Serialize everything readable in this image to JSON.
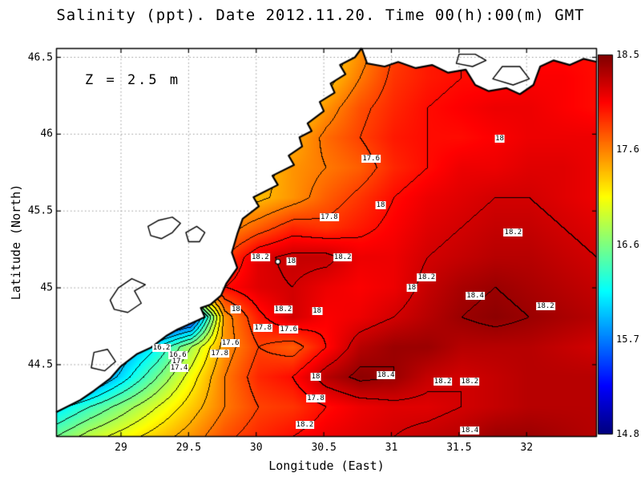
{
  "title": "Salinity (ppt). Date 2012.11.20. Time 00(h):00(m) GMT",
  "annotation": "Z = 2.5 m",
  "axes": {
    "x": {
      "label": "Longitude (East)",
      "min": 28.52,
      "max": 32.52,
      "ticks": [
        29,
        29.5,
        30,
        30.5,
        31,
        31.5,
        32
      ]
    },
    "y": {
      "label": "Latitude (North)",
      "min": 44.03,
      "max": 46.56,
      "ticks": [
        44.5,
        45,
        45.5,
        46,
        46.5
      ]
    }
  },
  "colorbar": {
    "min": 14.8,
    "max": 18.5,
    "tick_labels": [
      "18.5",
      "17.6",
      "16.6",
      "15.7",
      "14.8"
    ]
  },
  "colors": {
    "land": "#ffffff",
    "coast": "#000000",
    "grid": "#999999",
    "frame": "#000000",
    "contour": "#000000",
    "label_bg": "#ffffff"
  },
  "chart_data": {
    "type": "heatmap",
    "variable": "salinity_ppt",
    "colormap": "jet",
    "contour_interval": 0.2,
    "value_range": [
      14.8,
      18.5
    ],
    "lon": [
      28.52,
      28.77,
      29.02,
      29.27,
      29.52,
      29.77,
      30.02,
      30.27,
      30.52,
      30.77,
      31.02,
      31.27,
      31.52,
      31.77,
      32.02,
      32.27,
      32.52
    ],
    "lat": [
      46.56,
      46.365,
      46.171,
      45.976,
      45.782,
      45.587,
      45.392,
      45.198,
      45.003,
      44.809,
      44.614,
      44.419,
      44.225,
      44.03
    ],
    "values": [
      [
        17.0,
        17.0,
        17.0,
        17.0,
        17.0,
        17.0,
        17.0,
        17.0,
        17.2,
        17.5,
        17.8,
        17.95,
        18.0,
        18.0,
        18.0,
        18.0,
        18.0
      ],
      [
        17.0,
        17.0,
        17.0,
        17.0,
        17.0,
        17.0,
        17.0,
        17.1,
        17.3,
        17.6,
        17.85,
        17.95,
        18.0,
        18.0,
        18.05,
        18.05,
        18.0
      ],
      [
        17.0,
        17.0,
        17.0,
        17.0,
        17.0,
        17.0,
        17.1,
        17.2,
        17.5,
        17.75,
        17.9,
        18.0,
        18.05,
        18.1,
        18.1,
        18.05,
        18.0
      ],
      [
        17.0,
        17.0,
        17.0,
        17.0,
        17.0,
        17.1,
        17.2,
        17.4,
        17.65,
        17.8,
        17.95,
        18.0,
        18.0,
        18.05,
        18.1,
        18.1,
        18.1
      ],
      [
        17.2,
        17.2,
        17.2,
        17.2,
        17.2,
        17.2,
        17.3,
        17.5,
        17.6,
        17.7,
        17.9,
        18.0,
        18.1,
        18.1,
        18.15,
        18.15,
        18.1
      ],
      [
        17.4,
        17.4,
        17.4,
        17.4,
        17.4,
        17.3,
        17.35,
        17.5,
        17.7,
        17.85,
        18.0,
        18.1,
        18.15,
        18.2,
        18.2,
        18.15,
        18.1
      ],
      [
        17.6,
        17.6,
        17.6,
        17.6,
        17.6,
        17.5,
        17.7,
        17.9,
        17.85,
        17.95,
        18.05,
        18.15,
        18.2,
        18.25,
        18.25,
        18.2,
        18.15
      ],
      [
        17.8,
        17.8,
        17.8,
        17.8,
        17.8,
        17.8,
        18.15,
        18.25,
        18.25,
        18.1,
        18.1,
        18.2,
        18.25,
        18.3,
        18.3,
        18.25,
        18.2
      ],
      [
        17.9,
        17.9,
        17.9,
        17.9,
        17.9,
        18.0,
        18.15,
        18.2,
        18.1,
        18.05,
        18.1,
        18.25,
        18.35,
        18.4,
        18.35,
        18.3,
        18.25
      ],
      [
        16.0,
        15.5,
        15.2,
        15.0,
        15.3,
        17.5,
        17.95,
        18.2,
        18.05,
        18.1,
        18.2,
        18.3,
        18.4,
        18.45,
        18.4,
        18.35,
        18.3
      ],
      [
        14.9,
        15.1,
        15.8,
        16.2,
        16.8,
        17.5,
        17.8,
        17.7,
        18.0,
        18.3,
        18.4,
        18.4,
        18.3,
        18.3,
        18.3,
        18.25,
        18.2
      ],
      [
        15.2,
        15.6,
        16.1,
        16.6,
        17.1,
        17.6,
        17.9,
        18.0,
        18.3,
        18.45,
        18.4,
        18.25,
        18.2,
        18.25,
        18.3,
        18.3,
        18.3
      ],
      [
        16.1,
        16.4,
        16.7,
        17.0,
        17.3,
        17.6,
        17.8,
        17.85,
        18.0,
        18.1,
        18.15,
        18.15,
        18.2,
        18.25,
        18.3,
        18.3,
        18.3
      ],
      [
        16.6,
        16.9,
        17.1,
        17.3,
        17.5,
        17.75,
        17.9,
        18.0,
        18.1,
        18.15,
        18.2,
        18.25,
        18.3,
        18.4,
        18.4,
        18.35,
        18.3
      ]
    ],
    "contour_labels": [
      {
        "t": "18",
        "lon": 31.8,
        "lat": 45.97
      },
      {
        "t": "17.6",
        "lon": 30.85,
        "lat": 45.84
      },
      {
        "t": "18",
        "lon": 30.92,
        "lat": 45.54
      },
      {
        "t": "17.8",
        "lon": 30.54,
        "lat": 45.46
      },
      {
        "t": "18.2",
        "lon": 31.9,
        "lat": 45.36
      },
      {
        "t": "18.2",
        "lon": 30.03,
        "lat": 45.2
      },
      {
        "t": "18",
        "lon": 30.26,
        "lat": 45.17
      },
      {
        "t": "18.2",
        "lon": 30.64,
        "lat": 45.2
      },
      {
        "t": "18.2",
        "lon": 31.26,
        "lat": 45.07
      },
      {
        "t": "18",
        "lon": 31.15,
        "lat": 45.0
      },
      {
        "t": "18.4",
        "lon": 31.62,
        "lat": 44.95
      },
      {
        "t": "18.2",
        "lon": 32.14,
        "lat": 44.88
      },
      {
        "t": "18",
        "lon": 29.85,
        "lat": 44.86
      },
      {
        "t": "18.2",
        "lon": 30.2,
        "lat": 44.86
      },
      {
        "t": "18",
        "lon": 30.45,
        "lat": 44.85
      },
      {
        "t": "17.8",
        "lon": 30.05,
        "lat": 44.74
      },
      {
        "t": "17.6",
        "lon": 30.24,
        "lat": 44.73
      },
      {
        "t": "17.6",
        "lon": 29.81,
        "lat": 44.64
      },
      {
        "t": "16.2",
        "lon": 29.3,
        "lat": 44.61
      },
      {
        "t": "17.8",
        "lon": 29.73,
        "lat": 44.57
      },
      {
        "t": "16.6",
        "lon": 29.42,
        "lat": 44.56
      },
      {
        "t": "17",
        "lon": 29.41,
        "lat": 44.52
      },
      {
        "t": "17.4",
        "lon": 29.43,
        "lat": 44.48
      },
      {
        "t": "18",
        "lon": 30.44,
        "lat": 44.42
      },
      {
        "t": "18.4",
        "lon": 30.96,
        "lat": 44.43
      },
      {
        "t": "18.2",
        "lon": 31.38,
        "lat": 44.39
      },
      {
        "t": "18.2",
        "lon": 31.58,
        "lat": 44.39
      },
      {
        "t": "17.8",
        "lon": 30.44,
        "lat": 44.28
      },
      {
        "t": "18.2",
        "lon": 30.36,
        "lat": 44.11
      },
      {
        "t": "18.4",
        "lon": 31.58,
        "lat": 44.07
      }
    ],
    "marker": {
      "lon": 30.16,
      "lat": 45.17
    },
    "land_polygons": {
      "west": [
        [
          28.52,
          46.56
        ],
        [
          30.78,
          46.56
        ],
        [
          30.73,
          46.5
        ],
        [
          30.62,
          46.45
        ],
        [
          30.66,
          46.39
        ],
        [
          30.55,
          46.33
        ],
        [
          30.58,
          46.27
        ],
        [
          30.47,
          46.21
        ],
        [
          30.5,
          46.15
        ],
        [
          30.38,
          46.07
        ],
        [
          30.41,
          46.02
        ],
        [
          30.32,
          45.98
        ],
        [
          30.34,
          45.92
        ],
        [
          30.24,
          45.86
        ],
        [
          30.28,
          45.8
        ],
        [
          30.12,
          45.73
        ],
        [
          30.16,
          45.67
        ],
        [
          29.98,
          45.59
        ],
        [
          30.02,
          45.53
        ],
        [
          29.9,
          45.45
        ],
        [
          29.86,
          45.35
        ],
        [
          29.82,
          45.23
        ],
        [
          29.86,
          45.13
        ],
        [
          29.78,
          45.03
        ],
        [
          29.74,
          44.95
        ],
        [
          29.66,
          44.89
        ],
        [
          29.59,
          44.87
        ],
        [
          29.62,
          44.81
        ],
        [
          29.52,
          44.77
        ],
        [
          29.42,
          44.73
        ],
        [
          29.34,
          44.69
        ],
        [
          29.22,
          44.61
        ],
        [
          29.12,
          44.57
        ],
        [
          29.0,
          44.49
        ],
        [
          28.92,
          44.41
        ],
        [
          28.8,
          44.33
        ],
        [
          28.7,
          44.27
        ],
        [
          28.52,
          44.19
        ]
      ],
      "north": [
        [
          30.78,
          46.56
        ],
        [
          30.82,
          46.46
        ],
        [
          30.95,
          46.44
        ],
        [
          31.05,
          46.47
        ],
        [
          31.18,
          46.43
        ],
        [
          31.3,
          46.45
        ],
        [
          31.42,
          46.4
        ],
        [
          31.55,
          46.42
        ],
        [
          31.62,
          46.32
        ],
        [
          31.72,
          46.28
        ],
        [
          31.85,
          46.3
        ],
        [
          31.95,
          46.26
        ],
        [
          32.05,
          46.32
        ],
        [
          32.1,
          46.44
        ],
        [
          32.2,
          46.48
        ],
        [
          32.32,
          46.45
        ],
        [
          32.42,
          46.49
        ],
        [
          32.52,
          46.47
        ],
        [
          32.52,
          46.56
        ]
      ]
    },
    "lake_outlines": [
      [
        [
          29.22,
          45.34
        ],
        [
          29.3,
          45.32
        ],
        [
          29.38,
          45.36
        ],
        [
          29.44,
          45.42
        ],
        [
          29.38,
          45.46
        ],
        [
          29.28,
          45.44
        ],
        [
          29.2,
          45.4
        ]
      ],
      [
        [
          29.5,
          45.3
        ],
        [
          29.58,
          45.3
        ],
        [
          29.62,
          45.36
        ],
        [
          29.56,
          45.4
        ],
        [
          29.48,
          45.36
        ]
      ],
      [
        [
          28.95,
          44.86
        ],
        [
          29.05,
          44.84
        ],
        [
          29.15,
          44.9
        ],
        [
          29.1,
          44.98
        ],
        [
          29.18,
          45.02
        ],
        [
          29.08,
          45.06
        ],
        [
          28.98,
          45.0
        ],
        [
          28.92,
          44.92
        ]
      ],
      [
        [
          28.78,
          44.48
        ],
        [
          28.88,
          44.46
        ],
        [
          28.96,
          44.52
        ],
        [
          28.9,
          44.6
        ],
        [
          28.8,
          44.58
        ]
      ],
      [
        [
          31.48,
          46.46
        ],
        [
          31.6,
          46.44
        ],
        [
          31.7,
          46.48
        ],
        [
          31.62,
          46.52
        ],
        [
          31.5,
          46.52
        ]
      ],
      [
        [
          31.75,
          46.36
        ],
        [
          31.9,
          46.32
        ],
        [
          32.02,
          46.36
        ],
        [
          31.95,
          46.44
        ],
        [
          31.82,
          46.44
        ]
      ]
    ]
  }
}
